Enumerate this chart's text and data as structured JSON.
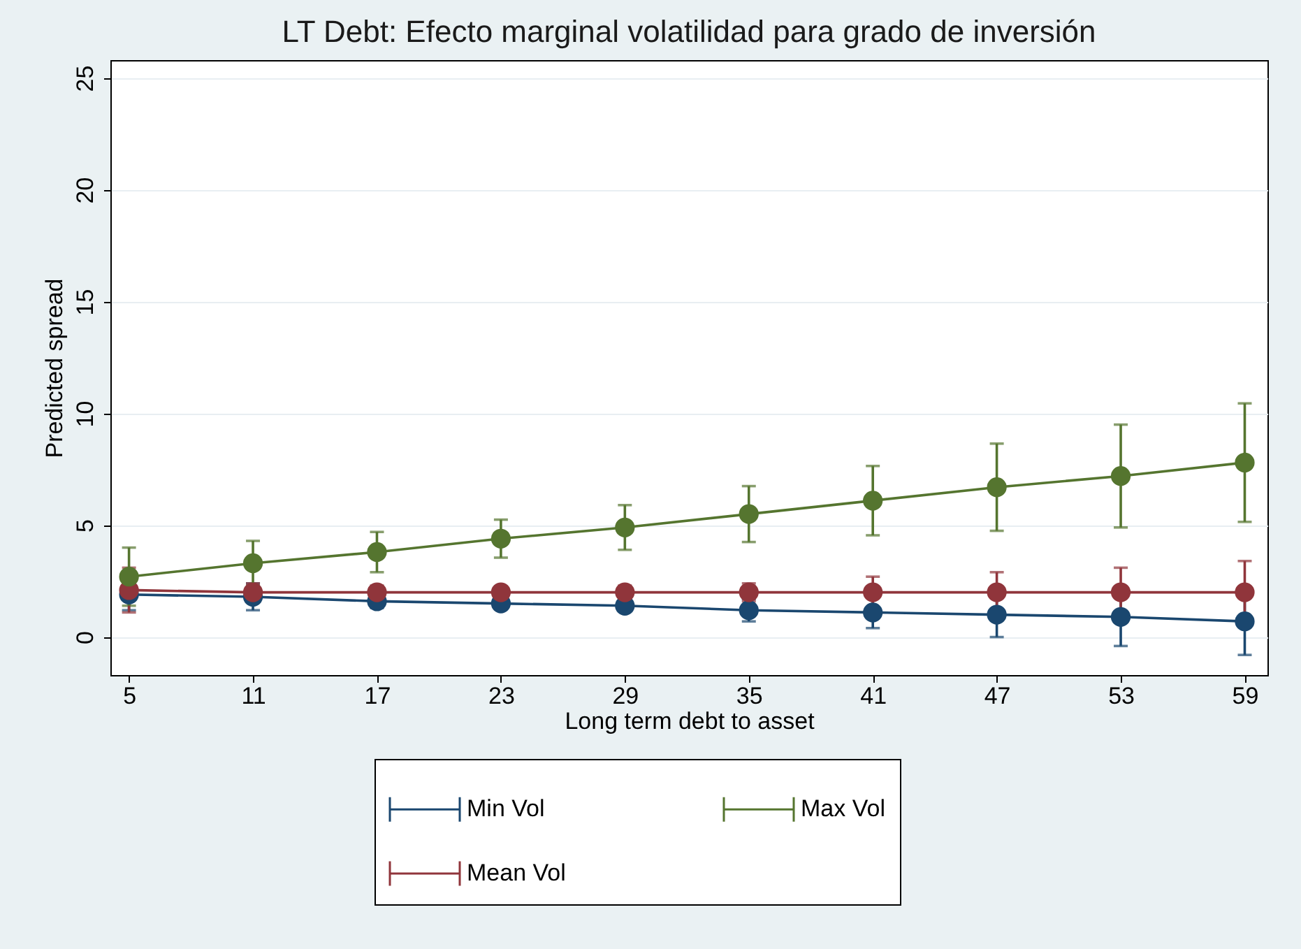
{
  "chart_data": {
    "type": "line",
    "title": "LT Debt: Efecto marginal volatilidad para grado de inversión",
    "xlabel": "Long term debt to asset",
    "ylabel": "Predicted spread",
    "x": [
      5,
      11,
      17,
      23,
      29,
      35,
      41,
      47,
      53,
      59
    ],
    "series": [
      {
        "name": "Min Vol",
        "color": "#1a476f",
        "values": [
          1.9,
          1.8,
          1.6,
          1.5,
          1.4,
          1.2,
          1.1,
          1.0,
          0.9,
          0.7
        ],
        "errors": [
          0.7,
          0.6,
          0.3,
          0.2,
          0.2,
          0.5,
          0.7,
          1.0,
          1.3,
          1.5
        ]
      },
      {
        "name": "Mean Vol",
        "color": "#90353b",
        "values": [
          2.1,
          2.0,
          2.0,
          2.0,
          2.0,
          2.0,
          2.0,
          2.0,
          2.0,
          2.0
        ],
        "errors": [
          1.0,
          0.4,
          0.3,
          0.25,
          0.3,
          0.4,
          0.7,
          0.9,
          1.1,
          1.4
        ]
      },
      {
        "name": "Max Vol",
        "color": "#55752f",
        "values": [
          2.7,
          3.3,
          3.8,
          4.4,
          4.9,
          5.5,
          6.1,
          6.7,
          7.2,
          7.8
        ],
        "errors": [
          1.3,
          1.0,
          0.9,
          0.85,
          1.0,
          1.25,
          1.55,
          1.95,
          2.3,
          2.65
        ]
      }
    ],
    "xlim": [
      4.1,
      60.1
    ],
    "xticks": [
      5,
      11,
      17,
      23,
      29,
      35,
      41,
      47,
      53,
      59
    ],
    "ylim": [
      -1.7,
      25.8
    ],
    "yticks": [
      0,
      5,
      10,
      15,
      20,
      25
    ],
    "grid": "y",
    "legend": "bottom",
    "marker": "circle",
    "line_style": "solid"
  }
}
